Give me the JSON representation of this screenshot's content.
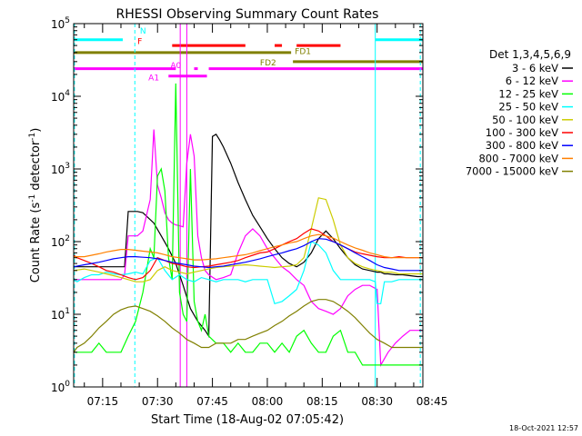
{
  "chart_data": {
    "type": "line",
    "title": "RHESSI Observing Summary Count Rates",
    "xlabel": "Start Time (18-Aug-02 07:05:42)",
    "ylabel": "Count Rate (s⁻¹ detector⁻¹)",
    "ylabel_main": "Count Rate (s",
    "ylabel_sup1": "-1",
    "ylabel_mid": " detector",
    "ylabel_sup2": "-1",
    "ylabel_end": ")",
    "yscale": "log",
    "ylim": [
      1,
      100000
    ],
    "xlim_minutes": [
      7.0833,
      102.5
    ],
    "x_ticks": [
      {
        "label": "07:15",
        "min": 15
      },
      {
        "label": "07:30",
        "min": 30
      },
      {
        "label": "07:45",
        "min": 45
      },
      {
        "label": "08:00",
        "min": 60
      },
      {
        "label": "08:15",
        "min": 75
      },
      {
        "label": "08:30",
        "min": 90
      },
      {
        "label": "08:45",
        "min": 105
      }
    ],
    "y_ticks": [
      {
        "base": "10",
        "exp": "0",
        "value": 1
      },
      {
        "base": "10",
        "exp": "1",
        "value": 10
      },
      {
        "base": "10",
        "exp": "2",
        "value": 100
      },
      {
        "base": "10",
        "exp": "3",
        "value": 1000
      },
      {
        "base": "10",
        "exp": "4",
        "value": 10000
      },
      {
        "base": "10",
        "exp": "5",
        "value": 100000
      }
    ],
    "legend_title": "Det 1,3,4,5,6,9",
    "legend_placement": "right",
    "series": [
      {
        "name": "3 - 6 keV",
        "color": "#000000",
        "x": [
          7.1,
          20,
          21,
          22,
          24.5,
          26,
          29,
          31,
          33,
          35,
          37,
          39,
          41,
          43,
          44,
          45,
          46,
          47,
          48,
          50,
          52,
          54,
          56,
          58,
          60,
          62,
          64,
          66,
          68,
          70,
          72,
          74,
          76,
          78,
          80,
          82,
          84,
          86,
          88,
          90,
          91,
          92,
          93,
          95,
          97,
          99,
          101,
          102.5
        ],
        "y": [
          45,
          45,
          45,
          260,
          260,
          250,
          180,
          120,
          80,
          50,
          25,
          12,
          8,
          6,
          5,
          2800,
          3000,
          2500,
          2000,
          1200,
          650,
          380,
          230,
          160,
          110,
          80,
          60,
          50,
          45,
          52,
          70,
          110,
          140,
          110,
          80,
          60,
          48,
          42,
          40,
          38,
          38,
          36,
          36,
          35,
          35,
          34,
          33,
          33
        ]
      },
      {
        "name": "6 - 12 keV",
        "color": "#ff00ff",
        "x": [
          7.1,
          20,
          21,
          22,
          24.5,
          26,
          28,
          29,
          30,
          31,
          32,
          33,
          34,
          35,
          36,
          37,
          38,
          39,
          40,
          41,
          42,
          43,
          44,
          46,
          48,
          50,
          52,
          54,
          56,
          58,
          60,
          62,
          64,
          66,
          68,
          70,
          72,
          74,
          76,
          78,
          80,
          82,
          84,
          86,
          88,
          90,
          91,
          93,
          95,
          97,
          99,
          101,
          102.5
        ],
        "y": [
          30,
          30,
          35,
          120,
          120,
          140,
          380,
          3500,
          600,
          400,
          250,
          200,
          180,
          170,
          165,
          160,
          1200,
          3000,
          1500,
          120,
          60,
          40,
          35,
          30,
          32,
          35,
          70,
          120,
          150,
          120,
          80,
          60,
          45,
          38,
          30,
          25,
          15,
          12,
          11,
          10,
          12,
          18,
          22,
          25,
          25,
          22,
          2,
          3,
          4,
          5,
          6,
          6,
          6
        ]
      },
      {
        "name": "12 - 25 keV",
        "color": "#00ff00",
        "x": [
          7.1,
          10,
          12,
          14,
          16,
          18,
          20,
          22,
          24,
          26,
          28,
          29,
          30,
          31,
          32,
          33,
          34,
          35,
          36,
          37,
          38,
          39,
          40,
          41,
          42,
          43,
          44,
          46,
          48,
          50,
          52,
          54,
          56,
          58,
          60,
          62,
          64,
          66,
          68,
          70,
          72,
          74,
          76,
          78,
          80,
          82,
          84,
          86,
          88,
          90,
          91,
          93,
          95,
          97,
          99,
          101,
          102.5
        ],
        "y": [
          3,
          3,
          3,
          4,
          3,
          3,
          3,
          5,
          8,
          20,
          80,
          60,
          800,
          1000,
          500,
          60,
          30,
          15000,
          20,
          10,
          8,
          1000,
          15,
          8,
          6,
          10,
          5,
          4,
          4,
          3,
          4,
          3,
          3,
          4,
          4,
          3,
          4,
          3,
          5,
          6,
          4,
          3,
          3,
          5,
          6,
          3,
          3,
          2,
          2,
          2,
          2,
          2,
          2,
          2,
          2,
          2,
          2
        ]
      },
      {
        "name": "25 - 50 keV",
        "color": "#00ffff",
        "x": [
          7.1,
          8,
          10,
          12,
          14,
          16,
          18,
          20,
          22,
          24,
          26,
          28,
          30,
          32,
          34,
          36,
          38,
          40,
          42,
          44,
          46,
          48,
          50,
          52,
          54,
          56,
          58,
          60,
          62,
          64,
          66,
          68,
          70,
          72,
          74,
          76,
          78,
          80,
          82,
          84,
          86,
          88,
          89.5,
          90,
          91,
          92,
          94,
          96,
          98,
          100,
          102.5
        ],
        "y": [
          30,
          28,
          32,
          35,
          35,
          38,
          36,
          35,
          36,
          38,
          36,
          55,
          60,
          40,
          30,
          35,
          30,
          28,
          32,
          30,
          28,
          30,
          30,
          30,
          28,
          30,
          30,
          30,
          14,
          15,
          18,
          22,
          40,
          100,
          90,
          70,
          40,
          30,
          30,
          30,
          30,
          30,
          28,
          14,
          14,
          28,
          28,
          30,
          30,
          30,
          30
        ]
      },
      {
        "name": "50 - 100 keV",
        "color": "#cccc00",
        "x": [
          7.1,
          10,
          12,
          14,
          16,
          18,
          20,
          22,
          24,
          26,
          28,
          30,
          32,
          34,
          36,
          38,
          40,
          42,
          44,
          46,
          48,
          50,
          52,
          54,
          56,
          58,
          60,
          62,
          64,
          66,
          68,
          70,
          72,
          74,
          76,
          78,
          80,
          82,
          84,
          86,
          88,
          90,
          92,
          94,
          96,
          98,
          100,
          102.5
        ],
        "y": [
          40,
          42,
          40,
          38,
          36,
          34,
          32,
          30,
          28,
          28,
          30,
          40,
          45,
          40,
          38,
          36,
          38,
          40,
          42,
          44,
          45,
          46,
          47,
          48,
          47,
          46,
          45,
          44,
          45,
          46,
          48,
          60,
          150,
          400,
          380,
          200,
          90,
          60,
          50,
          45,
          42,
          40,
          38,
          38,
          36,
          36,
          36,
          36
        ]
      },
      {
        "name": "100 - 300 keV",
        "color": "#ff0000",
        "x": [
          7.1,
          8,
          10,
          12,
          14,
          16,
          18,
          20,
          22,
          24,
          26,
          28,
          30,
          32,
          34,
          36,
          38,
          40,
          42,
          44,
          46,
          48,
          50,
          52,
          54,
          56,
          58,
          60,
          62,
          64,
          66,
          68,
          70,
          72,
          74,
          76,
          78,
          80,
          82,
          84,
          86,
          88,
          90,
          92,
          94,
          96,
          98,
          100,
          102.5
        ],
        "y": [
          65,
          60,
          55,
          50,
          45,
          40,
          38,
          35,
          32,
          30,
          32,
          40,
          60,
          55,
          50,
          48,
          45,
          44,
          45,
          46,
          48,
          50,
          52,
          55,
          60,
          65,
          70,
          72,
          80,
          90,
          100,
          110,
          130,
          150,
          140,
          120,
          100,
          90,
          80,
          72,
          68,
          65,
          62,
          60,
          60,
          62,
          60,
          60,
          60
        ]
      },
      {
        "name": "300 - 800 keV",
        "color": "#0000ff",
        "x": [
          7.1,
          10,
          12,
          14,
          16,
          18,
          20,
          22,
          24,
          26,
          28,
          30,
          32,
          34,
          36,
          38,
          40,
          42,
          44,
          46,
          48,
          50,
          52,
          54,
          56,
          58,
          60,
          62,
          64,
          66,
          68,
          70,
          72,
          74,
          76,
          78,
          80,
          82,
          84,
          86,
          88,
          90,
          92,
          94,
          96,
          98,
          100,
          102.5
        ],
        "y": [
          45,
          48,
          50,
          52,
          55,
          58,
          60,
          62,
          62,
          61,
          60,
          58,
          55,
          52,
          50,
          48,
          46,
          45,
          44,
          45,
          46,
          48,
          50,
          52,
          55,
          58,
          62,
          66,
          70,
          75,
          80,
          88,
          100,
          110,
          108,
          100,
          90,
          80,
          70,
          62,
          55,
          48,
          44,
          42,
          40,
          40,
          40,
          40
        ]
      },
      {
        "name": "800 - 7000 keV",
        "color": "#ff8000",
        "x": [
          7.1,
          10,
          12,
          14,
          16,
          18,
          20,
          22,
          24,
          26,
          28,
          30,
          32,
          34,
          36,
          38,
          40,
          42,
          44,
          46,
          48,
          50,
          52,
          54,
          56,
          58,
          60,
          62,
          64,
          66,
          68,
          70,
          72,
          74,
          76,
          78,
          80,
          82,
          84,
          86,
          88,
          90,
          92,
          94,
          96,
          98,
          100,
          102.5
        ],
        "y": [
          62,
          62,
          65,
          68,
          72,
          75,
          78,
          78,
          76,
          74,
          72,
          70,
          66,
          62,
          60,
          58,
          56,
          56,
          57,
          58,
          60,
          62,
          64,
          66,
          70,
          75,
          80,
          85,
          90,
          96,
          100,
          110,
          120,
          125,
          120,
          112,
          100,
          90,
          82,
          76,
          70,
          66,
          62,
          60,
          60,
          60,
          60,
          60
        ]
      },
      {
        "name": "7000 - 15000 keV",
        "color": "#808000",
        "x": [
          7.1,
          8,
          10,
          12,
          14,
          16,
          18,
          20,
          22,
          24,
          26,
          28,
          30,
          32,
          34,
          36,
          38,
          40,
          42,
          44,
          46,
          48,
          50,
          52,
          54,
          56,
          58,
          60,
          62,
          64,
          66,
          68,
          70,
          72,
          74,
          76,
          78,
          80,
          82,
          84,
          86,
          88,
          90,
          92,
          94,
          96,
          98,
          100,
          102.5
        ],
        "y": [
          3,
          3.5,
          4,
          5,
          6.5,
          8,
          10,
          11.5,
          12.5,
          13,
          12,
          11,
          9.5,
          8,
          6.5,
          5.5,
          4.5,
          4,
          3.5,
          3.5,
          4,
          4,
          4,
          4.5,
          4.5,
          5,
          5.5,
          6,
          7,
          8,
          9.5,
          11,
          13,
          15,
          16,
          16,
          15,
          13,
          11,
          9,
          7,
          5.5,
          4.5,
          4,
          3.5,
          3.5,
          3.5,
          3.5,
          3.5
        ]
      }
    ],
    "annotations": [
      {
        "text": "N",
        "color": "#00ffff"
      },
      {
        "text": "F",
        "color": "#ff0000"
      },
      {
        "text": "FD1",
        "color": "#808000"
      },
      {
        "text": "FD2",
        "color": "#808000"
      },
      {
        "text": "A0",
        "color": "#ff00ff"
      },
      {
        "text": "A1",
        "color": "#ff00ff"
      }
    ],
    "status_bars": [
      {
        "label": "N",
        "color": "#00ffff",
        "value": 60000,
        "segments": [
          [
            7.1,
            20.5
          ],
          [
            89.5,
            102.5
          ]
        ]
      },
      {
        "label": "F",
        "color": "#ff0000",
        "value": 50000,
        "segments": [
          [
            34,
            54
          ],
          [
            62,
            64
          ],
          [
            68,
            80
          ]
        ]
      },
      {
        "label": "FD1",
        "color": "#808000",
        "value": 40000,
        "segments": [
          [
            7.1,
            66.5
          ]
        ]
      },
      {
        "label": "FD2",
        "color": "#808000",
        "value": 30000,
        "segments": [
          [
            67,
            102.5
          ]
        ]
      },
      {
        "label": "A0",
        "color": "#ff00ff",
        "value": 24000,
        "segments": [
          [
            7.1,
            35
          ],
          [
            40,
            41
          ],
          [
            44,
            102.5
          ]
        ]
      },
      {
        "label": "A1",
        "color": "#ff00ff",
        "value": 19000,
        "segments": [
          [
            33,
            43.5
          ]
        ]
      }
    ],
    "vlines": [
      {
        "min": 7.3,
        "color": "#00ffff",
        "style": "dash"
      },
      {
        "min": 23.8,
        "color": "#00ffff",
        "style": "dash"
      },
      {
        "min": 89.5,
        "color": "#00ffff",
        "style": "solid"
      },
      {
        "min": 101.8,
        "color": "#00ffff",
        "style": "dash"
      },
      {
        "min": 36.2,
        "color": "#ff00ff",
        "style": "solid"
      },
      {
        "min": 38.0,
        "color": "#ff00ff",
        "style": "solid"
      }
    ],
    "grid": false,
    "footer_timestamp": "18-Oct-2021 12:57"
  }
}
